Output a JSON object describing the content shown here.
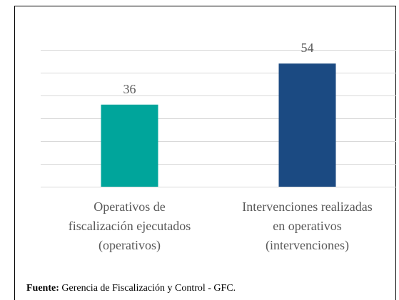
{
  "chart_data": {
    "type": "bar",
    "categories": [
      "Operativos de\nfiscalización ejecutados\n(operativos)",
      "Intervenciones realizadas\nen operativos\n(intervenciones)"
    ],
    "values": [
      36,
      54
    ],
    "colors": [
      "#00a59b",
      "#1b4a82"
    ],
    "ylim": [
      0,
      60
    ],
    "yticks": [
      0,
      10,
      20,
      30,
      40,
      50,
      60
    ],
    "grid": true,
    "source_label": "Fuente:",
    "source": "Gerencia de Fiscalización y Control - GFC."
  }
}
